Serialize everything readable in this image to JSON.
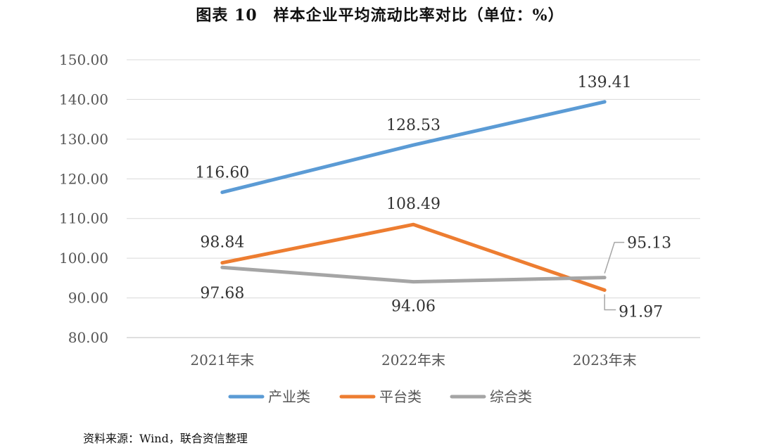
{
  "header": {
    "title": "图表 10　样本企业平均流动比率对比（单位：%）"
  },
  "footer": {
    "source": "资料来源：Wind，联合资信整理"
  },
  "chart_data": {
    "type": "line",
    "title": "图表 10　样本企业平均流动比率对比（单位：%）",
    "xlabel": "",
    "ylabel": "",
    "categories": [
      "2021年末",
      "2022年末",
      "2023年末"
    ],
    "ylim": [
      80,
      150
    ],
    "yticks": [
      "150.00",
      "140.00",
      "130.00",
      "120.00",
      "110.00",
      "100.00",
      "90.00",
      "80.00"
    ],
    "grid": true,
    "legend_position": "bottom",
    "series": [
      {
        "name": "产业类",
        "color": "#5B9BD5",
        "values": [
          116.6,
          128.53,
          139.41
        ],
        "labels": [
          "116.60",
          "128.53",
          "139.41"
        ]
      },
      {
        "name": "平台类",
        "color": "#ED7D31",
        "values": [
          98.84,
          108.49,
          91.97
        ],
        "labels": [
          "98.84",
          "108.49",
          "91.97"
        ]
      },
      {
        "name": "综合类",
        "color": "#A5A5A5",
        "values": [
          97.68,
          94.06,
          95.13
        ],
        "labels": [
          "97.68",
          "94.06",
          "95.13"
        ]
      }
    ]
  }
}
